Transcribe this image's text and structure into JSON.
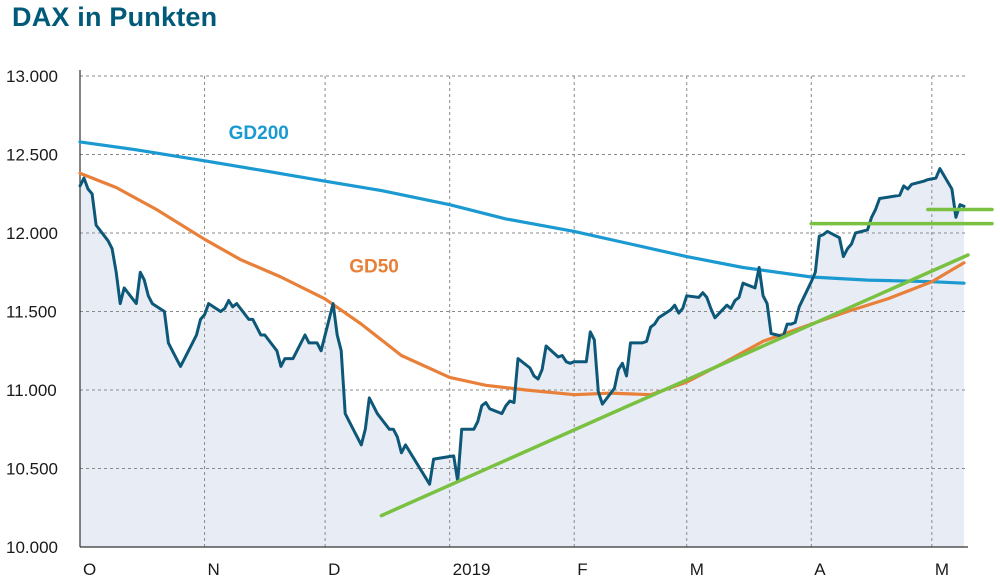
{
  "title": "DAX in Punkten",
  "chart_data": {
    "type": "line",
    "title": "DAX in Punkten",
    "xlabel": "",
    "ylabel": "",
    "ylim": [
      10000,
      13000
    ],
    "x_range": [
      "2018-10-01",
      "2019-05-10"
    ],
    "yticks": [
      {
        "value": 10000,
        "label": "10.000"
      },
      {
        "value": 10500,
        "label": "10.500"
      },
      {
        "value": 11000,
        "label": "11.000"
      },
      {
        "value": 11500,
        "label": "11.500"
      },
      {
        "value": 12000,
        "label": "12.000"
      },
      {
        "value": 12500,
        "label": "12.500"
      },
      {
        "value": 13000,
        "label": "13.000"
      }
    ],
    "xticks": [
      {
        "date": "2018-10-01",
        "label": "O"
      },
      {
        "date": "2018-11-01",
        "label": "N"
      },
      {
        "date": "2018-12-01",
        "label": "D"
      },
      {
        "date": "2019-01-01",
        "label": "2019"
      },
      {
        "date": "2019-02-01",
        "label": "F"
      },
      {
        "date": "2019-03-01",
        "label": "M"
      },
      {
        "date": "2019-04-01",
        "label": "A"
      },
      {
        "date": "2019-05-01",
        "label": "M"
      }
    ],
    "grid": true,
    "series": [
      {
        "name": "DAX",
        "color": "#0d5878",
        "area_fill": "#e8edf5",
        "points": [
          [
            "2018-10-01",
            12300
          ],
          [
            "2018-10-02",
            12350
          ],
          [
            "2018-10-03",
            12280
          ],
          [
            "2018-10-04",
            12250
          ],
          [
            "2018-10-05",
            12050
          ],
          [
            "2018-10-08",
            11950
          ],
          [
            "2018-10-09",
            11900
          ],
          [
            "2018-10-10",
            11750
          ],
          [
            "2018-10-11",
            11550
          ],
          [
            "2018-10-12",
            11650
          ],
          [
            "2018-10-15",
            11550
          ],
          [
            "2018-10-16",
            11750
          ],
          [
            "2018-10-17",
            11700
          ],
          [
            "2018-10-18",
            11600
          ],
          [
            "2018-10-19",
            11550
          ],
          [
            "2018-10-22",
            11500
          ],
          [
            "2018-10-23",
            11300
          ],
          [
            "2018-10-24",
            11250
          ],
          [
            "2018-10-25",
            11200
          ],
          [
            "2018-10-26",
            11150
          ],
          [
            "2018-10-29",
            11300
          ],
          [
            "2018-10-30",
            11350
          ],
          [
            "2018-10-31",
            11450
          ],
          [
            "2018-11-01",
            11480
          ],
          [
            "2018-11-02",
            11550
          ],
          [
            "2018-11-05",
            11500
          ],
          [
            "2018-11-06",
            11520
          ],
          [
            "2018-11-07",
            11570
          ],
          [
            "2018-11-08",
            11530
          ],
          [
            "2018-11-09",
            11550
          ],
          [
            "2018-11-12",
            11450
          ],
          [
            "2018-11-13",
            11450
          ],
          [
            "2018-11-14",
            11400
          ],
          [
            "2018-11-15",
            11350
          ],
          [
            "2018-11-16",
            11350
          ],
          [
            "2018-11-19",
            11250
          ],
          [
            "2018-11-20",
            11150
          ],
          [
            "2018-11-21",
            11200
          ],
          [
            "2018-11-22",
            11200
          ],
          [
            "2018-11-23",
            11200
          ],
          [
            "2018-11-26",
            11350
          ],
          [
            "2018-11-27",
            11300
          ],
          [
            "2018-11-28",
            11300
          ],
          [
            "2018-11-29",
            11300
          ],
          [
            "2018-11-30",
            11250
          ],
          [
            "2018-12-03",
            11550
          ],
          [
            "2018-12-04",
            11350
          ],
          [
            "2018-12-05",
            11250
          ],
          [
            "2018-12-06",
            10850
          ],
          [
            "2018-12-07",
            10800
          ],
          [
            "2018-12-10",
            10650
          ],
          [
            "2018-12-11",
            10750
          ],
          [
            "2018-12-12",
            10950
          ],
          [
            "2018-12-13",
            10900
          ],
          [
            "2018-12-14",
            10850
          ],
          [
            "2018-12-17",
            10750
          ],
          [
            "2018-12-18",
            10750
          ],
          [
            "2018-12-19",
            10700
          ],
          [
            "2018-12-20",
            10600
          ],
          [
            "2018-12-21",
            10650
          ],
          [
            "2018-12-27",
            10400
          ],
          [
            "2018-12-28",
            10560
          ],
          [
            "2019-01-02",
            10580
          ],
          [
            "2019-01-03",
            10420
          ],
          [
            "2019-01-04",
            10750
          ],
          [
            "2019-01-07",
            10750
          ],
          [
            "2019-01-08",
            10800
          ],
          [
            "2019-01-09",
            10900
          ],
          [
            "2019-01-10",
            10920
          ],
          [
            "2019-01-11",
            10880
          ],
          [
            "2019-01-14",
            10850
          ],
          [
            "2019-01-15",
            10900
          ],
          [
            "2019-01-16",
            10930
          ],
          [
            "2019-01-17",
            10920
          ],
          [
            "2019-01-18",
            11200
          ],
          [
            "2019-01-21",
            11140
          ],
          [
            "2019-01-22",
            11090
          ],
          [
            "2019-01-23",
            11070
          ],
          [
            "2019-01-24",
            11130
          ],
          [
            "2019-01-25",
            11280
          ],
          [
            "2019-01-28",
            11210
          ],
          [
            "2019-01-29",
            11220
          ],
          [
            "2019-01-30",
            11180
          ],
          [
            "2019-01-31",
            11170
          ],
          [
            "2019-02-01",
            11180
          ],
          [
            "2019-02-04",
            11180
          ],
          [
            "2019-02-05",
            11370
          ],
          [
            "2019-02-06",
            11320
          ],
          [
            "2019-02-07",
            10990
          ],
          [
            "2019-02-08",
            10910
          ],
          [
            "2019-02-11",
            11010
          ],
          [
            "2019-02-12",
            11130
          ],
          [
            "2019-02-13",
            11170
          ],
          [
            "2019-02-14",
            11090
          ],
          [
            "2019-02-15",
            11300
          ],
          [
            "2019-02-18",
            11300
          ],
          [
            "2019-02-19",
            11310
          ],
          [
            "2019-02-20",
            11400
          ],
          [
            "2019-02-21",
            11420
          ],
          [
            "2019-02-22",
            11460
          ],
          [
            "2019-02-25",
            11510
          ],
          [
            "2019-02-26",
            11540
          ],
          [
            "2019-02-27",
            11490
          ],
          [
            "2019-02-28",
            11520
          ],
          [
            "2019-03-01",
            11600
          ],
          [
            "2019-03-04",
            11590
          ],
          [
            "2019-03-05",
            11620
          ],
          [
            "2019-03-06",
            11590
          ],
          [
            "2019-03-07",
            11520
          ],
          [
            "2019-03-08",
            11460
          ],
          [
            "2019-03-11",
            11540
          ],
          [
            "2019-03-12",
            11520
          ],
          [
            "2019-03-13",
            11570
          ],
          [
            "2019-03-14",
            11590
          ],
          [
            "2019-03-15",
            11680
          ],
          [
            "2019-03-18",
            11650
          ],
          [
            "2019-03-19",
            11780
          ],
          [
            "2019-03-20",
            11600
          ],
          [
            "2019-03-21",
            11550
          ],
          [
            "2019-03-22",
            11360
          ],
          [
            "2019-03-25",
            11340
          ],
          [
            "2019-03-26",
            11420
          ],
          [
            "2019-03-27",
            11420
          ],
          [
            "2019-03-28",
            11430
          ],
          [
            "2019-03-29",
            11530
          ],
          [
            "2019-04-01",
            11690
          ],
          [
            "2019-04-02",
            11750
          ],
          [
            "2019-04-03",
            11980
          ],
          [
            "2019-04-04",
            11990
          ],
          [
            "2019-04-05",
            12010
          ],
          [
            "2019-04-08",
            11970
          ],
          [
            "2019-04-09",
            11850
          ],
          [
            "2019-04-10",
            11900
          ],
          [
            "2019-04-11",
            11930
          ],
          [
            "2019-04-12",
            12000
          ],
          [
            "2019-04-15",
            12020
          ],
          [
            "2019-04-16",
            12100
          ],
          [
            "2019-04-17",
            12150
          ],
          [
            "2019-04-18",
            12220
          ],
          [
            "2019-04-23",
            12240
          ],
          [
            "2019-04-24",
            12300
          ],
          [
            "2019-04-25",
            12280
          ],
          [
            "2019-04-26",
            12310
          ],
          [
            "2019-04-29",
            12330
          ],
          [
            "2019-04-30",
            12340
          ],
          [
            "2019-05-02",
            12350
          ],
          [
            "2019-05-03",
            12410
          ],
          [
            "2019-05-06",
            12280
          ],
          [
            "2019-05-07",
            12100
          ],
          [
            "2019-05-08",
            12180
          ],
          [
            "2019-05-09",
            12170
          ]
        ]
      },
      {
        "name": "GD200",
        "color": "#1b9ad2",
        "label_pos": [
          "2018-11-07",
          12600
        ],
        "points": [
          [
            "2018-10-01",
            12580
          ],
          [
            "2018-10-15",
            12530
          ],
          [
            "2018-11-01",
            12460
          ],
          [
            "2018-11-15",
            12400
          ],
          [
            "2018-12-01",
            12330
          ],
          [
            "2018-12-15",
            12270
          ],
          [
            "2019-01-01",
            12180
          ],
          [
            "2019-01-15",
            12090
          ],
          [
            "2019-02-01",
            12010
          ],
          [
            "2019-02-15",
            11930
          ],
          [
            "2019-03-01",
            11850
          ],
          [
            "2019-03-15",
            11780
          ],
          [
            "2019-04-01",
            11720
          ],
          [
            "2019-04-15",
            11700
          ],
          [
            "2019-05-01",
            11690
          ],
          [
            "2019-05-09",
            11680
          ]
        ]
      },
      {
        "name": "GD50",
        "color": "#e8803a",
        "label_pos": [
          "2018-12-07",
          11750
        ],
        "points": [
          [
            "2018-10-01",
            12380
          ],
          [
            "2018-10-10",
            12290
          ],
          [
            "2018-10-20",
            12150
          ],
          [
            "2018-11-01",
            11960
          ],
          [
            "2018-11-10",
            11830
          ],
          [
            "2018-11-20",
            11720
          ],
          [
            "2018-12-01",
            11580
          ],
          [
            "2018-12-10",
            11420
          ],
          [
            "2018-12-20",
            11220
          ],
          [
            "2019-01-01",
            11080
          ],
          [
            "2019-01-10",
            11030
          ],
          [
            "2019-01-20",
            11000
          ],
          [
            "2019-02-01",
            10970
          ],
          [
            "2019-02-10",
            10980
          ],
          [
            "2019-02-20",
            10970
          ],
          [
            "2019-03-01",
            11050
          ],
          [
            "2019-03-10",
            11170
          ],
          [
            "2019-03-20",
            11310
          ],
          [
            "2019-04-01",
            11420
          ],
          [
            "2019-04-10",
            11500
          ],
          [
            "2019-04-20",
            11580
          ],
          [
            "2019-05-01",
            11690
          ],
          [
            "2019-05-09",
            11810
          ]
        ]
      }
    ],
    "annotations": [
      {
        "type": "trendline",
        "color": "#7ac142",
        "from": [
          "2018-12-15",
          10200
        ],
        "to": [
          "2019-05-10",
          11860
        ]
      },
      {
        "type": "hline",
        "color": "#7ac142",
        "y": 12060,
        "from": "2019-04-01",
        "to": "2019-05-10"
      },
      {
        "type": "hline",
        "color": "#7ac142",
        "y": 12150,
        "from": "2019-04-30",
        "to": "2019-05-10"
      }
    ]
  }
}
